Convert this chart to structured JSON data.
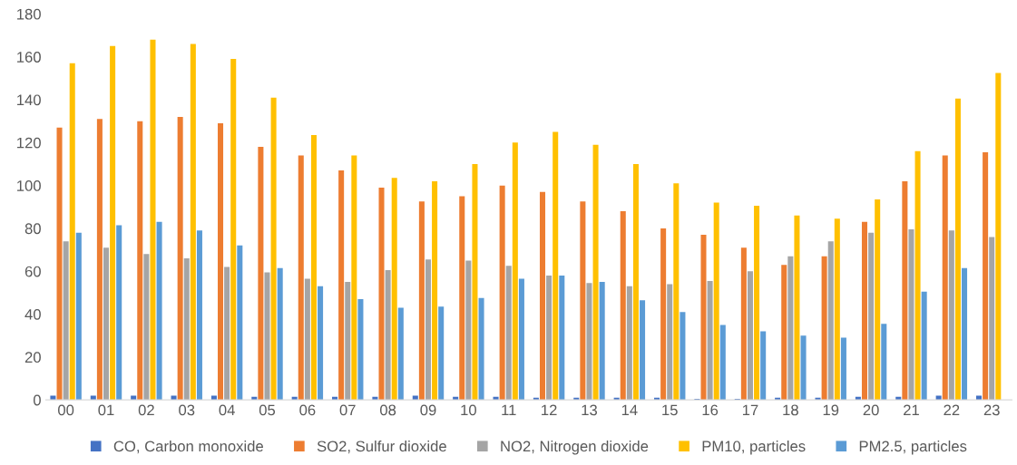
{
  "chart_data": {
    "type": "bar",
    "categories": [
      "00",
      "01",
      "02",
      "03",
      "04",
      "05",
      "06",
      "07",
      "08",
      "09",
      "10",
      "11",
      "12",
      "13",
      "14",
      "15",
      "16",
      "17",
      "18",
      "19",
      "20",
      "21",
      "22",
      "23"
    ],
    "series": [
      {
        "name": "CO, Carbon monoxide",
        "color": "#4472c4",
        "values": [
          2,
          2,
          2,
          2,
          2,
          1.5,
          1.5,
          1.5,
          1.5,
          2,
          1.5,
          1.5,
          1,
          1,
          1,
          1,
          0.5,
          0.5,
          1,
          1,
          1.5,
          1.5,
          2,
          2
        ]
      },
      {
        "name": "SO2, Sulfur dioxide",
        "color": "#ed7d31",
        "values": [
          127,
          131,
          130,
          132,
          129,
          118,
          114,
          107,
          99,
          92.5,
          95,
          100,
          97,
          92.5,
          88,
          80,
          77,
          71,
          63,
          67,
          83,
          102,
          114,
          115.5
        ]
      },
      {
        "name": "NO2, Nitrogen dioxide",
        "color": "#a5a5a5",
        "values": [
          74,
          71,
          68,
          66,
          62,
          59.5,
          56.5,
          55,
          60.5,
          65.5,
          65,
          62.5,
          58,
          54.5,
          53,
          54,
          55.5,
          60,
          67,
          74,
          78,
          79.5,
          79,
          76
        ]
      },
      {
        "name": "PM10, particles",
        "color": "#ffc000",
        "values": [
          157,
          165,
          168,
          166,
          159,
          141,
          123.5,
          114,
          103.5,
          102,
          110,
          120,
          125,
          119,
          110,
          101,
          92,
          90.5,
          86,
          84.5,
          93.5,
          116,
          140.5,
          152.5
        ]
      },
      {
        "name": "PM2.5, particles",
        "color": "#5b9bd5",
        "values": [
          78,
          81.5,
          83,
          79,
          72,
          61.5,
          53,
          47,
          43,
          43.5,
          47.5,
          56.5,
          58,
          55,
          46.5,
          41,
          35,
          32,
          30,
          29,
          35.5,
          50.5,
          61.5,
          null
        ]
      }
    ],
    "ylim": [
      0,
      180
    ],
    "yticks": [
      0,
      20,
      40,
      60,
      80,
      100,
      120,
      140,
      160,
      180
    ],
    "grid": false,
    "legend": "bottom"
  }
}
